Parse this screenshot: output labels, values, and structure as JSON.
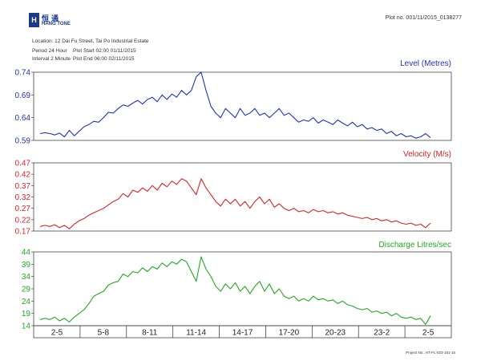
{
  "header": {
    "logo_cn": "恒通",
    "logo_en": "HANG TONE",
    "plot_no": "Plot no. 001/11/2015_0138277",
    "location": "Location: 12 Dai Fu Street, Tai Po Industrial Estate",
    "period": "Period 24 Hour",
    "plot_start": "Plot Start 02:00 01/11/2015",
    "interval": "Interval 2 Minute",
    "plot_end": "Plot End  06:00 02/11/2015"
  },
  "footer": {
    "project_no": "Project No.: HT-FL-023-151-15"
  },
  "colors": {
    "level": "#2233bb",
    "velocity": "#dd2222",
    "discharge": "#22aa22"
  },
  "chart_data": [
    {
      "type": "line",
      "title": "Level (Metres)",
      "ylim": [
        0.59,
        0.74
      ],
      "yticks": [
        "0.74",
        "0.69",
        "0.64",
        "0.59"
      ],
      "ytick_values": [
        0.74,
        0.69,
        0.64,
        0.59
      ],
      "grid": false,
      "series": [
        {
          "values": [
            0.605,
            0.607,
            0.605,
            0.602,
            0.606,
            0.598,
            0.612,
            0.6,
            0.61,
            0.62,
            0.625,
            0.632,
            0.63,
            0.64,
            0.652,
            0.65,
            0.66,
            0.668,
            0.665,
            0.672,
            0.678,
            0.67,
            0.68,
            0.685,
            0.675,
            0.69,
            0.68,
            0.692,
            0.685,
            0.7,
            0.69,
            0.7,
            0.73,
            0.74,
            0.7,
            0.665,
            0.65,
            0.64,
            0.66,
            0.65,
            0.64,
            0.66,
            0.645,
            0.65,
            0.66,
            0.645,
            0.65,
            0.64,
            0.65,
            0.66,
            0.645,
            0.65,
            0.64,
            0.63,
            0.635,
            0.632,
            0.64,
            0.628,
            0.635,
            0.63,
            0.625,
            0.635,
            0.628,
            0.622,
            0.63,
            0.62,
            0.625,
            0.615,
            0.618,
            0.612,
            0.615,
            0.605,
            0.61,
            0.6,
            0.605,
            0.598,
            0.6,
            0.595,
            0.598,
            0.605,
            0.596
          ]
        }
      ]
    },
    {
      "type": "line",
      "title": "Velocity (M/s)",
      "ylim": [
        0.17,
        0.47
      ],
      "yticks": [
        "0.47",
        "0.42",
        "0.37",
        "0.32",
        "0.27",
        "0.22",
        "0.17"
      ],
      "ytick_values": [
        0.47,
        0.42,
        0.37,
        0.32,
        0.27,
        0.22,
        0.17
      ],
      "grid": false,
      "series": [
        {
          "values": [
            0.19,
            0.195,
            0.19,
            0.198,
            0.185,
            0.195,
            0.18,
            0.2,
            0.215,
            0.225,
            0.24,
            0.25,
            0.26,
            0.27,
            0.285,
            0.3,
            0.31,
            0.335,
            0.32,
            0.35,
            0.34,
            0.36,
            0.345,
            0.37,
            0.35,
            0.38,
            0.365,
            0.39,
            0.375,
            0.4,
            0.39,
            0.36,
            0.33,
            0.4,
            0.36,
            0.33,
            0.3,
            0.28,
            0.31,
            0.29,
            0.31,
            0.28,
            0.3,
            0.27,
            0.3,
            0.32,
            0.29,
            0.31,
            0.275,
            0.29,
            0.27,
            0.26,
            0.27,
            0.255,
            0.26,
            0.25,
            0.265,
            0.255,
            0.26,
            0.25,
            0.255,
            0.245,
            0.25,
            0.24,
            0.235,
            0.23,
            0.225,
            0.23,
            0.22,
            0.225,
            0.215,
            0.22,
            0.21,
            0.215,
            0.205,
            0.2,
            0.205,
            0.195,
            0.2,
            0.185,
            0.205
          ]
        }
      ]
    },
    {
      "type": "line",
      "title": "Discharge Litres/sec",
      "ylim": [
        14,
        44
      ],
      "yticks": [
        "44",
        "39",
        "34",
        "29",
        "24",
        "19",
        "14"
      ],
      "ytick_values": [
        44,
        39,
        34,
        29,
        24,
        19,
        14
      ],
      "grid": false,
      "series": [
        {
          "values": [
            16.5,
            17.0,
            16.5,
            17.5,
            16.0,
            17.0,
            15.5,
            17.5,
            19.0,
            20.5,
            23.0,
            26.0,
            27.0,
            28.0,
            30.5,
            31.5,
            32.0,
            35.0,
            34.0,
            36.0,
            35.5,
            37.5,
            36.0,
            38.0,
            37.0,
            39.5,
            38.0,
            40.0,
            39.0,
            41.0,
            40.0,
            36.0,
            32.0,
            42.0,
            37.0,
            34.0,
            30.0,
            28.0,
            31.0,
            29.0,
            31.5,
            28.0,
            30.0,
            27.0,
            30.0,
            32.0,
            28.0,
            31.0,
            27.0,
            29.0,
            26.0,
            25.0,
            26.0,
            24.0,
            25.0,
            24.0,
            26.0,
            24.5,
            25.0,
            24.0,
            24.5,
            23.0,
            24.0,
            22.5,
            22.0,
            21.0,
            20.5,
            21.0,
            19.5,
            20.0,
            19.0,
            19.5,
            18.0,
            19.0,
            17.5,
            17.0,
            17.5,
            16.5,
            17.0,
            14.5,
            18.0
          ]
        }
      ]
    }
  ],
  "xaxis": {
    "labels": [
      "2-5",
      "5-8",
      "8-11",
      "11-14",
      "14-17",
      "17-20",
      "20-23",
      "23-2",
      "2-5"
    ]
  }
}
